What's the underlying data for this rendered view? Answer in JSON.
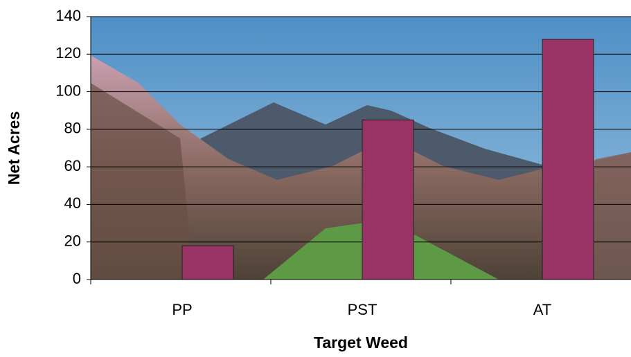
{
  "chart_data": {
    "type": "bar",
    "categories": [
      "PP",
      "PST",
      "AT"
    ],
    "values": [
      18,
      85,
      128
    ],
    "color": "#993366",
    "xlabel": "Target Weed",
    "ylabel": "Net Acres",
    "ylim": [
      0,
      140
    ],
    "yticks": [
      0,
      20,
      40,
      60,
      80,
      100,
      120,
      140
    ],
    "grid": true
  }
}
